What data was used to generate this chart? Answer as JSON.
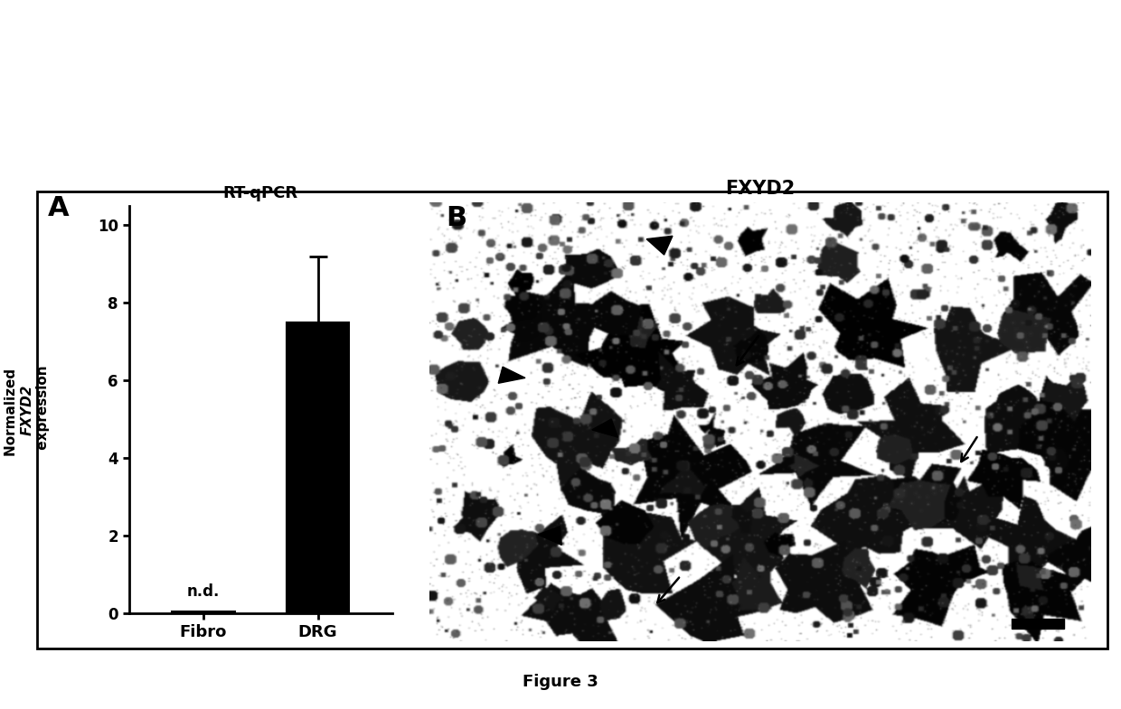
{
  "panel_A": {
    "title": "RT-qPCR",
    "ylabel_normal": "Normalized ",
    "ylabel_italic": "FXYD2",
    "ylabel_normal2": " expression",
    "categories": [
      "Fibro",
      "DRG"
    ],
    "values": [
      0.05,
      7.5
    ],
    "error_low": 0.0,
    "error_high": 1.7,
    "bar_color": "#000000",
    "bar_width": 0.55,
    "ylim": [
      0,
      10.5
    ],
    "yticks": [
      0,
      2,
      4,
      6,
      8,
      10
    ],
    "nd_label": "n.d.",
    "label_A": "A"
  },
  "panel_B": {
    "title": "FXYD2",
    "label_B": "B"
  },
  "figure_caption": "Figure 3",
  "bg_color": "#ffffff",
  "border_color": "#000000",
  "text_color": "#000000"
}
